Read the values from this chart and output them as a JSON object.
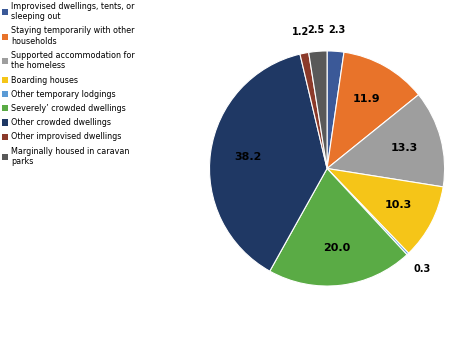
{
  "labels": [
    "Improvised dwellings, tents, or\nsleeping out",
    "Staying temporarily with other\nhouseholds",
    "Supported accommodation for\nthe homeless",
    "Boarding houses",
    "Other temporary lodgings",
    "Severely’ crowded dwellings",
    "Other crowded dwellings",
    "Other improvised dwellings",
    "Marginally housed in caravan\nparks"
  ],
  "values": [
    2.3,
    11.9,
    13.3,
    10.3,
    0.3,
    20.0,
    38.2,
    1.2,
    2.5
  ],
  "colors": [
    "#3B5998",
    "#E8732A",
    "#9E9E9E",
    "#F5C518",
    "#5B9BD5",
    "#5AAB45",
    "#1F3864",
    "#8B3A2A",
    "#595959"
  ],
  "startangle": 90,
  "background_color": "#ffffff",
  "legend_labels": [
    "Improvised dwellings, tents, or\nsleeping out",
    "Staying temporarily with other\nhouseholds",
    "Supported accommodation for\nthe homeless",
    "Boarding houses",
    "Other temporary lodgings",
    "Severely’ crowded dwellings",
    "Other crowded dwellings",
    "Other improvised dwellings",
    "Marginally housed in caravan\nparks"
  ]
}
